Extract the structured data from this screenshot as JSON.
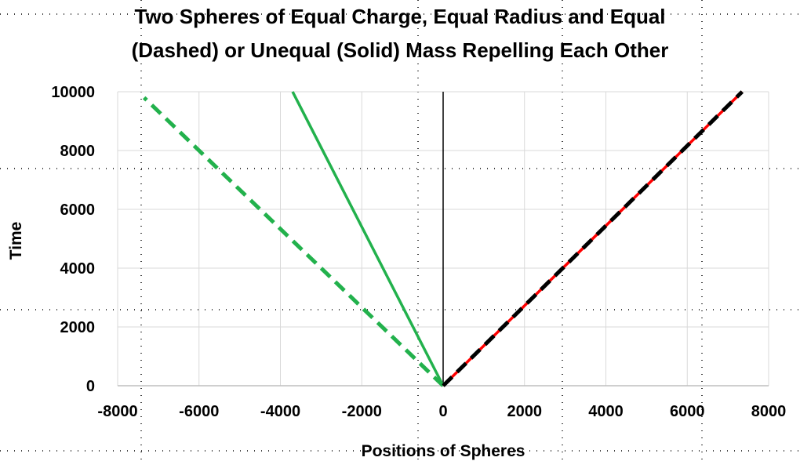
{
  "chart_data": {
    "type": "line",
    "title": [
      "Two Spheres of Equal Charge, Equal Radius and Equal",
      "(Dashed) or Unequal (Solid) Mass Repelling Each Other"
    ],
    "xlabel": "Positions of Spheres",
    "ylabel": "Time",
    "xlim": [
      -8000,
      8000
    ],
    "ylim": [
      0,
      10000
    ],
    "xticks": [
      -8000,
      -6000,
      -4000,
      -2000,
      0,
      2000,
      4000,
      6000,
      8000
    ],
    "yticks": [
      0,
      2000,
      4000,
      6000,
      8000,
      10000
    ],
    "grid": true,
    "series": [
      {
        "style": "dashed",
        "color": "#22b14c",
        "x": [
          0,
          -7350
        ],
        "y": [
          0,
          9800
        ]
      },
      {
        "style": "solid",
        "color": "#22b14c",
        "x": [
          0,
          -3700
        ],
        "y": [
          0,
          10000
        ]
      },
      {
        "style": "solid",
        "color": "#ff0000",
        "x": [
          0,
          7350
        ],
        "y": [
          0,
          10000
        ]
      },
      {
        "style": "dashed",
        "color": "#000000",
        "x": [
          0,
          7350
        ],
        "y": [
          0,
          10000
        ]
      }
    ]
  }
}
